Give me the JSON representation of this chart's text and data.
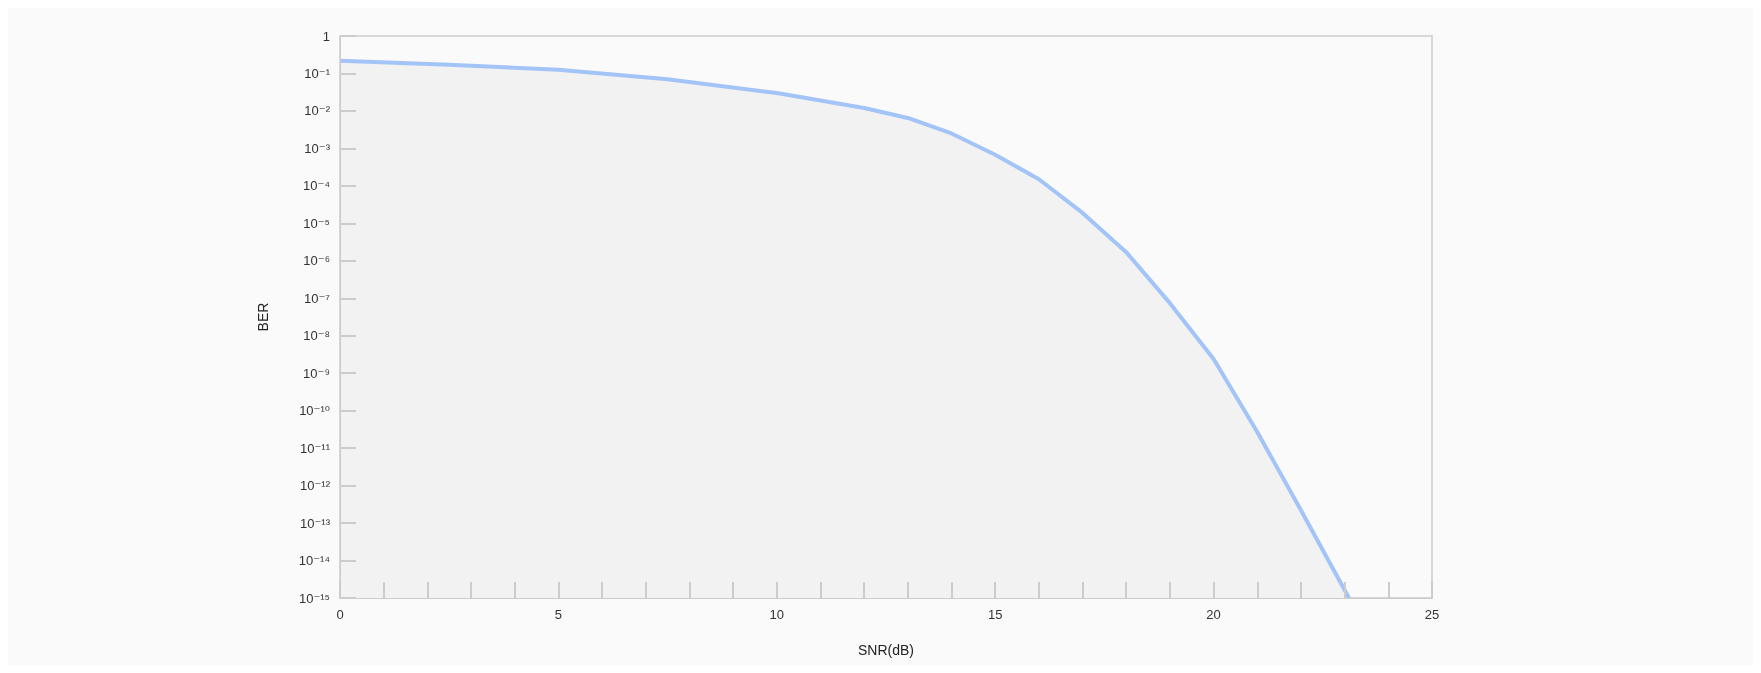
{
  "chart_data": {
    "type": "area",
    "xlabel": "SNR(dB)",
    "ylabel": "BER",
    "log": "y",
    "grid": false,
    "x": [
      0,
      2.5,
      5,
      7.5,
      10,
      12,
      13,
      14,
      15,
      16,
      17,
      18,
      19,
      20,
      21,
      22,
      23.1
    ],
    "series": [
      {
        "color": "#a3c4f7",
        "values": [
          0.22,
          0.17,
          0.126,
          0.07,
          0.03,
          0.012,
          0.0065,
          0.0025,
          0.00068,
          0.00015,
          1.9e-05,
          1.7e-06,
          7.4e-08,
          2.4e-09,
          2.7e-11,
          2.2e-13,
          1e-15
        ]
      }
    ],
    "xlim": [
      0,
      25
    ],
    "xticks": [
      0,
      {
        "value": 1,
        "label": null
      },
      {
        "value": 2,
        "label": null
      },
      {
        "value": 3,
        "label": null
      },
      {
        "value": 4,
        "label": null
      },
      5,
      {
        "value": 6,
        "label": null
      },
      {
        "value": 7,
        "label": null
      },
      {
        "value": 8,
        "label": null
      },
      {
        "value": 9,
        "label": null
      },
      10,
      {
        "value": 11,
        "label": null
      },
      {
        "value": 12,
        "label": null
      },
      {
        "value": 13,
        "label": null
      },
      {
        "value": 14,
        "label": null
      },
      15,
      {
        "value": 16,
        "label": null
      },
      {
        "value": 17,
        "label": null
      },
      {
        "value": 18,
        "label": null
      },
      {
        "value": 19,
        "label": null
      },
      20,
      {
        "value": 21,
        "label": null
      },
      {
        "value": 22,
        "label": null
      },
      {
        "value": 23,
        "label": null
      },
      {
        "value": 24,
        "label": null
      },
      25
    ],
    "ylim": [
      1e-15,
      1
    ],
    "yticks": [
      {
        "value": 1e-15,
        "label": "10⁻¹⁵"
      },
      {
        "value": 1e-14,
        "label": "10⁻¹⁴"
      },
      {
        "value": 1e-13,
        "label": "10⁻¹³"
      },
      {
        "value": 1e-12,
        "label": "10⁻¹²"
      },
      {
        "value": 1e-11,
        "label": "10⁻¹¹"
      },
      {
        "value": 1e-10,
        "label": "10⁻¹⁰"
      },
      {
        "value": 1e-09,
        "label": "10⁻⁹"
      },
      {
        "value": 1e-08,
        "label": "10⁻⁸"
      },
      {
        "value": 1e-07,
        "label": "10⁻⁷"
      },
      {
        "value": 1e-06,
        "label": "10⁻⁶"
      },
      {
        "value": 1e-05,
        "label": "10⁻⁵"
      },
      {
        "value": 0.0001,
        "label": "10⁻⁴"
      },
      {
        "value": 0.001,
        "label": "10⁻³"
      },
      {
        "value": 0.01,
        "label": "10⁻²"
      },
      {
        "value": 0.1,
        "label": "10⁻¹"
      },
      1
    ]
  }
}
